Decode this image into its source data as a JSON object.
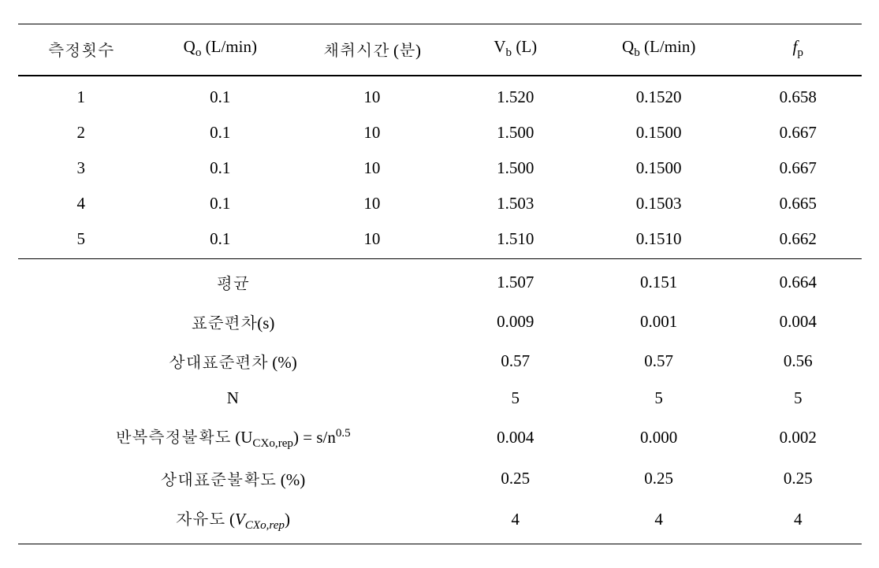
{
  "headers": {
    "h1": "측정횟수",
    "h2_prefix": "Q",
    "h2_sub": "o",
    "h2_suffix": " (L/min)",
    "h3": "채취시간 (분)",
    "h4_prefix": "V",
    "h4_sub": "b",
    "h4_suffix": " (L)",
    "h5_prefix": "Q",
    "h5_sub": "b",
    "h5_suffix": " (L/min)",
    "h6_prefix": "f",
    "h6_sub": "p"
  },
  "data_rows": [
    {
      "n": "1",
      "qo": "0.1",
      "time": "10",
      "vb": "1.520",
      "qb": "0.1520",
      "fp": "0.658"
    },
    {
      "n": "2",
      "qo": "0.1",
      "time": "10",
      "vb": "1.500",
      "qb": "0.1500",
      "fp": "0.667"
    },
    {
      "n": "3",
      "qo": "0.1",
      "time": "10",
      "vb": "1.500",
      "qb": "0.1500",
      "fp": "0.667"
    },
    {
      "n": "4",
      "qo": "0.1",
      "time": "10",
      "vb": "1.503",
      "qb": "0.1503",
      "fp": "0.665"
    },
    {
      "n": "5",
      "qo": "0.1",
      "time": "10",
      "vb": "1.510",
      "qb": "0.1510",
      "fp": "0.662"
    }
  ],
  "stats_rows": [
    {
      "label": "평균",
      "vb": "1.507",
      "qb": "0.151",
      "fp": "0.664"
    },
    {
      "label": "표준편차(s)",
      "vb": "0.009",
      "qb": "0.001",
      "fp": "0.004"
    },
    {
      "label": "상대표준편차 (%)",
      "vb": "0.57",
      "qb": "0.57",
      "fp": "0.56"
    },
    {
      "label": "N",
      "vb": "5",
      "qb": "5",
      "fp": "5"
    },
    {
      "label_prefix": "반복측정불확도 (U",
      "label_sub": "CXo,rep",
      "label_mid": ") = s/n",
      "label_sup": "0.5",
      "vb": "0.004",
      "qb": "0.000",
      "fp": "0.002"
    },
    {
      "label": "상대표준불확도 (%)",
      "vb": "0.25",
      "qb": "0.25",
      "fp": "0.25"
    },
    {
      "label_prefix": "자유도 (",
      "label_italic_sub_prefix": "V",
      "label_sub2": "CXo,rep",
      "label_suffix": ")",
      "vb": "4",
      "qb": "4",
      "fp": "4"
    }
  ]
}
